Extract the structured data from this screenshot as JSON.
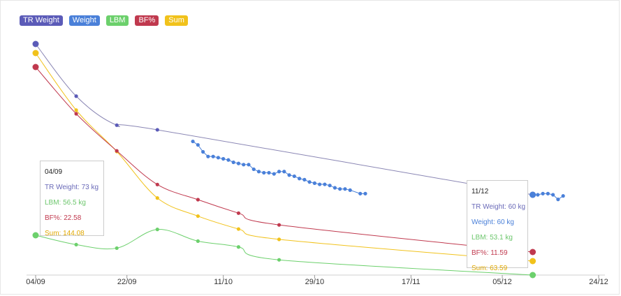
{
  "legend": [
    {
      "label": "TR Weight",
      "color": "#5b5bb8"
    },
    {
      "label": "Weight",
      "color": "#4a80d9"
    },
    {
      "label": "LBM",
      "color": "#6cd06c"
    },
    {
      "label": "BF%",
      "color": "#c0394e"
    },
    {
      "label": "Sum",
      "color": "#f1c21b"
    }
  ],
  "tooltips": [
    {
      "date": "04/09",
      "lines": [
        {
          "text": "TR Weight: 73 kg",
          "color": "#6a6ab8"
        },
        {
          "text": "LBM: 56.5 kg",
          "color": "#6cc66c"
        },
        {
          "text": "BF%: 22.58",
          "color": "#c0394e"
        },
        {
          "text": "Sum: 144.08",
          "color": "#e0a800"
        }
      ]
    },
    {
      "date": "11/12",
      "lines": [
        {
          "text": "TR Weight: 60 kg",
          "color": "#6a6ab8"
        },
        {
          "text": "Weight: 60 kg",
          "color": "#4a80d9"
        },
        {
          "text": "LBM: 53.1 kg",
          "color": "#6cc66c"
        },
        {
          "text": "BF%: 11.59",
          "color": "#c0394e"
        },
        {
          "text": "Sum: 63.59",
          "color": "#e0a800"
        }
      ]
    }
  ],
  "chart_data": {
    "type": "line",
    "x_ticks": [
      "04/09",
      "22/09",
      "11/10",
      "29/10",
      "17/11",
      "05/12",
      "24/12"
    ],
    "grid": false,
    "legend_position": "top-left",
    "series": [
      {
        "name": "TR Weight",
        "color": "#8a86b4",
        "marker": "#5b5bb8",
        "smooth": true,
        "points": [
          [
            "04/09",
            73
          ],
          [
            "12/09",
            68.5
          ],
          [
            "20/09",
            66
          ],
          [
            "28/09",
            65.6
          ],
          [
            "11/12",
            60
          ]
        ]
      },
      {
        "name": "Weight",
        "color": "#4a80d9",
        "marker": "#4a80d9",
        "smooth": false,
        "points": [
          [
            "05/10",
            64.6
          ],
          [
            "06/10",
            64.3
          ],
          [
            "07/10",
            63.7
          ],
          [
            "08/10",
            63.3
          ],
          [
            "09/10",
            63.3
          ],
          [
            "10/10",
            63.2
          ],
          [
            "11/10",
            63.1
          ],
          [
            "12/10",
            63
          ],
          [
            "13/10",
            62.8
          ],
          [
            "14/10",
            62.7
          ],
          [
            "15/10",
            62.6
          ],
          [
            "16/10",
            62.6
          ],
          [
            "17/10",
            62.2
          ],
          [
            "18/10",
            62
          ],
          [
            "19/10",
            61.9
          ],
          [
            "20/10",
            61.9
          ],
          [
            "21/10",
            61.8
          ],
          [
            "22/10",
            62
          ],
          [
            "23/10",
            62
          ],
          [
            "24/10",
            61.7
          ],
          [
            "25/10",
            61.6
          ],
          [
            "26/10",
            61.4
          ],
          [
            "27/10",
            61.3
          ],
          [
            "28/10",
            61.1
          ],
          [
            "29/10",
            61
          ],
          [
            "30/10",
            60.9
          ],
          [
            "31/10",
            60.9
          ],
          [
            "01/11",
            60.8
          ],
          [
            "02/11",
            60.6
          ],
          [
            "03/11",
            60.5
          ],
          [
            "04/11",
            60.5
          ],
          [
            "05/11",
            60.4
          ],
          [
            "07/11",
            60.1
          ],
          [
            "08/11",
            60.1
          ],
          [
            "11/12",
            60
          ],
          [
            "12/12",
            60
          ],
          [
            "13/12",
            60.1
          ],
          [
            "14/12",
            60.1
          ],
          [
            "15/12",
            60
          ],
          [
            "16/12",
            59.6
          ],
          [
            "17/12",
            59.9
          ]
        ]
      },
      {
        "name": "LBM",
        "color": "#6cd06c",
        "marker": "#6cd06c",
        "smooth": true,
        "points": [
          [
            "04/09",
            56.5
          ],
          [
            "12/09",
            55.7
          ],
          [
            "20/09",
            55.4
          ],
          [
            "28/09",
            57
          ],
          [
            "06/10",
            56
          ],
          [
            "14/10",
            55.5
          ],
          [
            "22/10",
            54.4
          ],
          [
            "11/12",
            53.1
          ]
        ]
      },
      {
        "name": "BF%",
        "color": "#c0394e",
        "marker": "#c0394e",
        "smooth": true,
        "points": [
          [
            "04/09",
            22.58
          ],
          [
            "12/09",
            19.8
          ],
          [
            "20/09",
            17.6
          ],
          [
            "28/09",
            15.6
          ],
          [
            "06/10",
            14.7
          ],
          [
            "14/10",
            13.9
          ],
          [
            "22/10",
            13.2
          ],
          [
            "11/12",
            11.59
          ]
        ]
      },
      {
        "name": "Sum",
        "color": "#f1c21b",
        "marker": "#f1c21b",
        "smooth": true,
        "points": [
          [
            "04/09",
            144.08
          ],
          [
            "12/09",
            122
          ],
          [
            "20/09",
            106
          ],
          [
            "28/09",
            88
          ],
          [
            "06/10",
            81
          ],
          [
            "14/10",
            76
          ],
          [
            "22/10",
            72
          ],
          [
            "11/12",
            63.59
          ]
        ]
      }
    ]
  }
}
